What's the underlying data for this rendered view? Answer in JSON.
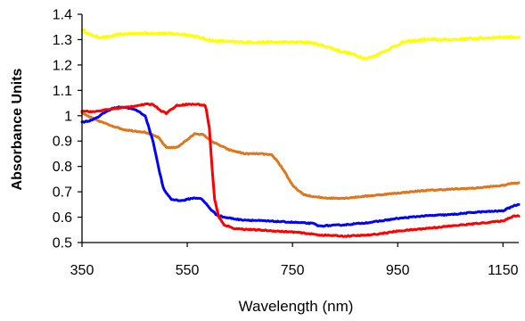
{
  "chart_data": {
    "type": "line",
    "title": "",
    "xlabel": "Wavelength (nm)",
    "ylabel": "Absorbance Units",
    "xlim": [
      350,
      1180
    ],
    "ylim": [
      0.5,
      1.4
    ],
    "x_ticks": [
      350,
      550,
      750,
      950,
      1150
    ],
    "x_tick_labels": [
      "350",
      "550",
      "750",
      "950",
      "1150"
    ],
    "y_ticks": [
      0.5,
      0.6,
      0.7,
      0.8,
      0.9,
      1.0,
      1.1,
      1.2,
      1.3,
      1.4
    ],
    "y_tick_labels": [
      "0.5",
      "0.6",
      "0.7",
      "0.8",
      "0.9",
      "1",
      "1.1",
      "1.2",
      "1.3",
      "1.4"
    ],
    "grid": false,
    "legend": "none",
    "series": [
      {
        "color": "#ffff00",
        "noise": 0.004,
        "x": [
          350,
          365,
          380,
          400,
          420,
          450,
          500,
          550,
          570,
          600,
          650,
          700,
          750,
          780,
          800,
          820,
          840,
          860,
          875,
          890,
          905,
          920,
          940,
          960,
          1000,
          1050,
          1100,
          1150,
          1180
        ],
        "y": [
          1.34,
          1.32,
          1.31,
          1.31,
          1.32,
          1.325,
          1.325,
          1.32,
          1.31,
          1.295,
          1.29,
          1.29,
          1.29,
          1.29,
          1.28,
          1.27,
          1.255,
          1.245,
          1.235,
          1.225,
          1.235,
          1.25,
          1.27,
          1.29,
          1.3,
          1.3,
          1.305,
          1.31,
          1.31
        ]
      },
      {
        "color": "#e0751a",
        "noise": 0.002,
        "x": [
          350,
          375,
          400,
          430,
          470,
          495,
          510,
          530,
          550,
          565,
          580,
          600,
          630,
          660,
          690,
          710,
          720,
          735,
          750,
          770,
          790,
          820,
          850,
          900,
          950,
          1000,
          1050,
          1100,
          1150,
          1170,
          1180
        ],
        "y": [
          1.01,
          0.985,
          0.965,
          0.945,
          0.935,
          0.915,
          0.875,
          0.875,
          0.905,
          0.93,
          0.925,
          0.895,
          0.865,
          0.85,
          0.85,
          0.845,
          0.825,
          0.78,
          0.725,
          0.69,
          0.68,
          0.675,
          0.675,
          0.685,
          0.695,
          0.705,
          0.71,
          0.715,
          0.725,
          0.735,
          0.735
        ]
      },
      {
        "color": "#0000ff",
        "noise": 0.002,
        "x": [
          350,
          365,
          380,
          395,
          410,
          425,
          440,
          455,
          470,
          485,
          495,
          505,
          520,
          540,
          560,
          575,
          585,
          595,
          605,
          620,
          650,
          700,
          750,
          790,
          800,
          850,
          900,
          950,
          1000,
          1050,
          1100,
          1150,
          1170,
          1180
        ],
        "y": [
          0.975,
          0.98,
          0.995,
          1.015,
          1.03,
          1.035,
          1.03,
          1.02,
          1.0,
          0.9,
          0.8,
          0.71,
          0.67,
          0.665,
          0.675,
          0.675,
          0.655,
          0.63,
          0.61,
          0.6,
          0.59,
          0.585,
          0.58,
          0.575,
          0.565,
          0.57,
          0.58,
          0.595,
          0.605,
          0.61,
          0.62,
          0.625,
          0.645,
          0.65
        ]
      },
      {
        "color": "#ff0000",
        "noise": 0.002,
        "x": [
          350,
          370,
          400,
          440,
          470,
          485,
          500,
          510,
          530,
          550,
          570,
          585,
          592,
          597,
          602,
          610,
          620,
          640,
          680,
          720,
          760,
          800,
          850,
          900,
          950,
          1000,
          1050,
          1100,
          1150,
          1170,
          1180
        ],
        "y": [
          1.02,
          1.015,
          1.025,
          1.035,
          1.045,
          1.045,
          1.02,
          1.01,
          1.04,
          1.045,
          1.045,
          1.04,
          0.95,
          0.8,
          0.67,
          0.6,
          0.57,
          0.555,
          0.55,
          0.545,
          0.54,
          0.53,
          0.525,
          0.53,
          0.545,
          0.555,
          0.565,
          0.575,
          0.585,
          0.605,
          0.605
        ]
      }
    ]
  }
}
